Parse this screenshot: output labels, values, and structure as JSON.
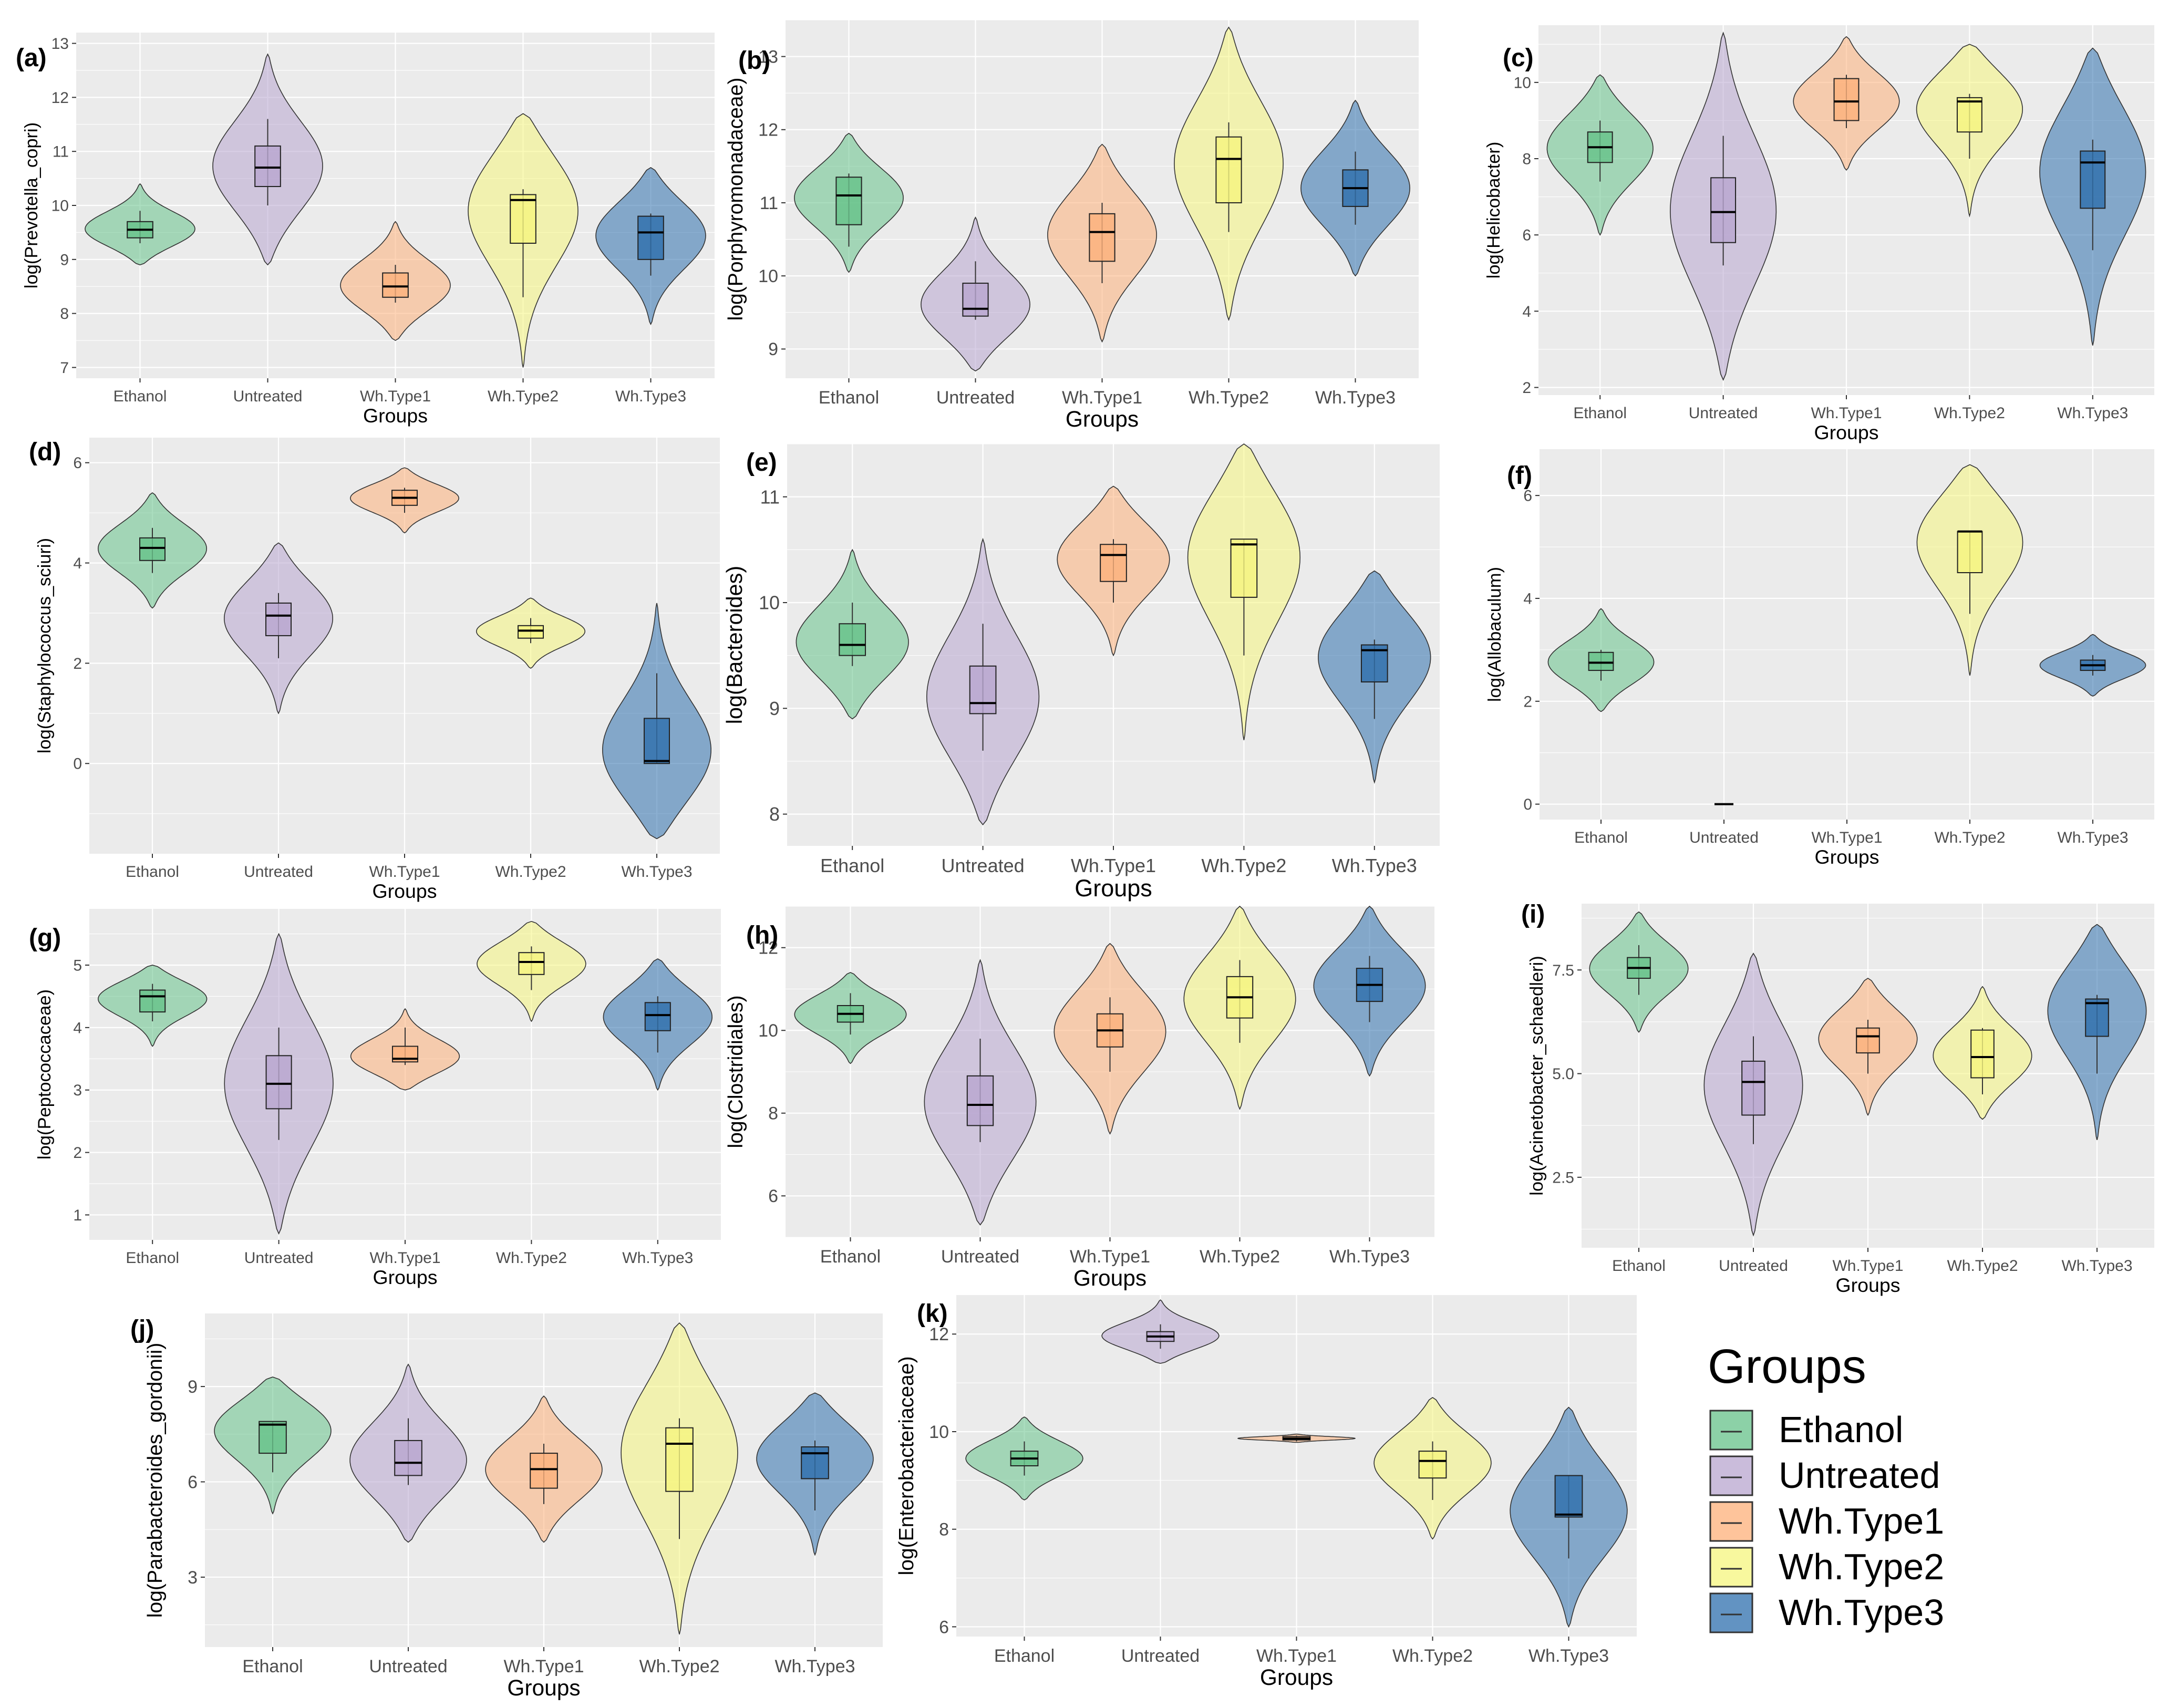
{
  "legend": {
    "title": "Groups",
    "items": [
      {
        "label": "Ethanol",
        "color": "#66C28A"
      },
      {
        "label": "Untreated",
        "color": "#B8A5CF"
      },
      {
        "label": "Wh.Type1",
        "color": "#FDB07A"
      },
      {
        "label": "Wh.Type2",
        "color": "#F6F57E"
      },
      {
        "label": "Wh.Type3",
        "color": "#2E6FAD"
      }
    ]
  },
  "chart_data": [
    {
      "id": "a",
      "label": "(a)",
      "type": "violin",
      "ylabel": "log(Prevotella_copri)",
      "xlabel": "Groups",
      "categories": [
        "Ethanol",
        "Untreated",
        "Wh.Type1",
        "Wh.Type2",
        "Wh.Type3"
      ],
      "ylim": [
        6.8,
        13.2
      ],
      "yticks": [
        "7",
        "8",
        "9",
        "10",
        "11",
        "12",
        "13"
      ],
      "series": [
        {
          "name": "Ethanol",
          "min": 8.9,
          "max": 10.4,
          "q1": 9.4,
          "median": 9.55,
          "q3": 9.7,
          "wlo": 9.3,
          "whi": 9.9
        },
        {
          "name": "Untreated",
          "min": 8.9,
          "max": 12.8,
          "q1": 10.35,
          "median": 10.7,
          "q3": 11.1,
          "wlo": 10.0,
          "whi": 11.6
        },
        {
          "name": "Wh.Type1",
          "min": 7.5,
          "max": 9.7,
          "q1": 8.3,
          "median": 8.5,
          "q3": 8.75,
          "wlo": 8.2,
          "whi": 8.9
        },
        {
          "name": "Wh.Type2",
          "min": 7.0,
          "max": 11.7,
          "q1": 9.3,
          "median": 10.1,
          "q3": 10.2,
          "wlo": 8.3,
          "whi": 10.3
        },
        {
          "name": "Wh.Type3",
          "min": 7.8,
          "max": 10.7,
          "q1": 9.0,
          "median": 9.5,
          "q3": 9.8,
          "wlo": 8.7,
          "whi": 9.85
        }
      ]
    },
    {
      "id": "b",
      "label": "(b)",
      "type": "violin",
      "ylabel": "log(Porphyromonadaceae)",
      "xlabel": "Groups",
      "categories": [
        "Ethanol",
        "Untreated",
        "Wh.Type1",
        "Wh.Type2",
        "Wh.Type3"
      ],
      "ylim": [
        8.6,
        13.5
      ],
      "yticks": [
        "9",
        "10",
        "11",
        "12",
        "13"
      ],
      "series": [
        {
          "name": "Ethanol",
          "min": 10.05,
          "max": 11.95,
          "q1": 10.7,
          "median": 11.1,
          "q3": 11.35,
          "wlo": 10.4,
          "whi": 11.4
        },
        {
          "name": "Untreated",
          "min": 8.7,
          "max": 10.8,
          "q1": 9.45,
          "median": 9.55,
          "q3": 9.9,
          "wlo": 9.4,
          "whi": 10.2
        },
        {
          "name": "Wh.Type1",
          "min": 9.1,
          "max": 11.8,
          "q1": 10.2,
          "median": 10.6,
          "q3": 10.85,
          "wlo": 9.9,
          "whi": 11.0
        },
        {
          "name": "Wh.Type2",
          "min": 9.4,
          "max": 13.4,
          "q1": 11.0,
          "median": 11.6,
          "q3": 11.9,
          "wlo": 10.6,
          "whi": 12.1
        },
        {
          "name": "Wh.Type3",
          "min": 10.0,
          "max": 12.4,
          "q1": 10.95,
          "median": 11.2,
          "q3": 11.45,
          "wlo": 10.7,
          "whi": 11.7
        }
      ]
    },
    {
      "id": "c",
      "label": "(c)",
      "type": "violin",
      "ylabel": "log(Helicobacter)",
      "xlabel": "Groups",
      "categories": [
        "Ethanol",
        "Untreated",
        "Wh.Type1",
        "Wh.Type2",
        "Wh.Type3"
      ],
      "ylim": [
        1.8,
        11.5
      ],
      "yticks": [
        "2",
        "4",
        "6",
        "8",
        "10"
      ],
      "series": [
        {
          "name": "Ethanol",
          "min": 6.0,
          "max": 10.2,
          "q1": 7.9,
          "median": 8.3,
          "q3": 8.7,
          "wlo": 7.4,
          "whi": 9.0
        },
        {
          "name": "Untreated",
          "min": 2.2,
          "max": 11.3,
          "q1": 5.8,
          "median": 6.6,
          "q3": 7.5,
          "wlo": 5.2,
          "whi": 8.6
        },
        {
          "name": "Wh.Type1",
          "min": 7.7,
          "max": 11.2,
          "q1": 9.0,
          "median": 9.5,
          "q3": 10.1,
          "wlo": 8.8,
          "whi": 10.2
        },
        {
          "name": "Wh.Type2",
          "min": 6.5,
          "max": 11.0,
          "q1": 8.7,
          "median": 9.5,
          "q3": 9.6,
          "wlo": 8.0,
          "whi": 9.7
        },
        {
          "name": "Wh.Type3",
          "min": 3.1,
          "max": 10.9,
          "q1": 6.7,
          "median": 7.9,
          "q3": 8.2,
          "wlo": 5.6,
          "whi": 8.5
        }
      ]
    },
    {
      "id": "d",
      "label": "(d)",
      "type": "violin",
      "ylabel": "log(Staphylococcus_sciuri)",
      "xlabel": "Groups",
      "categories": [
        "Ethanol",
        "Untreated",
        "Wh.Type1",
        "Wh.Type2",
        "Wh.Type3"
      ],
      "ylim": [
        -1.8,
        6.5
      ],
      "yticks": [
        "0",
        "2",
        "4",
        "6"
      ],
      "series": [
        {
          "name": "Ethanol",
          "min": 3.1,
          "max": 5.4,
          "q1": 4.05,
          "median": 4.3,
          "q3": 4.5,
          "wlo": 3.8,
          "whi": 4.7
        },
        {
          "name": "Untreated",
          "min": 1.0,
          "max": 4.4,
          "q1": 2.55,
          "median": 2.95,
          "q3": 3.2,
          "wlo": 2.1,
          "whi": 3.4
        },
        {
          "name": "Wh.Type1",
          "min": 4.6,
          "max": 5.9,
          "q1": 5.15,
          "median": 5.3,
          "q3": 5.45,
          "wlo": 5.0,
          "whi": 5.5
        },
        {
          "name": "Wh.Type2",
          "min": 1.9,
          "max": 3.3,
          "q1": 2.5,
          "median": 2.65,
          "q3": 2.75,
          "wlo": 2.4,
          "whi": 2.9
        },
        {
          "name": "Wh.Type3",
          "min": -1.5,
          "max": 3.2,
          "q1": 0.0,
          "median": 0.05,
          "q3": 0.9,
          "wlo": 0.0,
          "whi": 1.8
        }
      ]
    },
    {
      "id": "e",
      "label": "(e)",
      "type": "violin",
      "ylabel": "log(Bacteroides)",
      "xlabel": "Groups",
      "categories": [
        "Ethanol",
        "Untreated",
        "Wh.Type1",
        "Wh.Type2",
        "Wh.Type3"
      ],
      "ylim": [
        7.7,
        11.5
      ],
      "yticks": [
        "8",
        "9",
        "10",
        "11"
      ],
      "series": [
        {
          "name": "Ethanol",
          "min": 8.9,
          "max": 10.5,
          "q1": 9.5,
          "median": 9.6,
          "q3": 9.8,
          "wlo": 9.4,
          "whi": 10.0
        },
        {
          "name": "Untreated",
          "min": 7.9,
          "max": 10.6,
          "q1": 8.95,
          "median": 9.05,
          "q3": 9.4,
          "wlo": 8.6,
          "whi": 9.8
        },
        {
          "name": "Wh.Type1",
          "min": 9.5,
          "max": 11.1,
          "q1": 10.2,
          "median": 10.45,
          "q3": 10.55,
          "wlo": 10.0,
          "whi": 10.6
        },
        {
          "name": "Wh.Type2",
          "min": 8.7,
          "max": 11.5,
          "q1": 10.05,
          "median": 10.55,
          "q3": 10.6,
          "wlo": 9.5,
          "whi": 10.6
        },
        {
          "name": "Wh.Type3",
          "min": 8.3,
          "max": 10.3,
          "q1": 9.25,
          "median": 9.55,
          "q3": 9.6,
          "wlo": 8.9,
          "whi": 9.65
        }
      ]
    },
    {
      "id": "f",
      "label": "(f)",
      "type": "violin",
      "ylabel": "log(Allobaculum)",
      "xlabel": "Groups",
      "categories": [
        "Ethanol",
        "Untreated",
        "Wh.Type1",
        "Wh.Type2",
        "Wh.Type3"
      ],
      "ylim": [
        -0.3,
        6.9
      ],
      "yticks": [
        "0",
        "2",
        "4",
        "6"
      ],
      "series": [
        {
          "name": "Ethanol",
          "min": 1.8,
          "max": 3.8,
          "q1": 2.6,
          "median": 2.75,
          "q3": 2.95,
          "wlo": 2.4,
          "whi": 3.0
        },
        {
          "name": "Untreated",
          "min": 0.0,
          "max": 0.0,
          "q1": 0.0,
          "median": 0.0,
          "q3": 0.0,
          "wlo": 0.0,
          "whi": 0.0
        },
        {
          "name": "Wh.Type1",
          "empty": true
        },
        {
          "name": "Wh.Type2",
          "min": 2.5,
          "max": 6.6,
          "q1": 4.5,
          "median": 5.3,
          "q3": 5.3,
          "wlo": 3.7,
          "whi": 5.3
        },
        {
          "name": "Wh.Type3",
          "min": 2.1,
          "max": 3.3,
          "q1": 2.6,
          "median": 2.7,
          "q3": 2.8,
          "wlo": 2.5,
          "whi": 2.9
        }
      ]
    },
    {
      "id": "g",
      "label": "(g)",
      "type": "violin",
      "ylabel": "log(Peptococcaceae)",
      "xlabel": "Groups",
      "categories": [
        "Ethanol",
        "Untreated",
        "Wh.Type1",
        "Wh.Type2",
        "Wh.Type3"
      ],
      "ylim": [
        0.6,
        5.9
      ],
      "yticks": [
        "1",
        "2",
        "3",
        "4",
        "5"
      ],
      "series": [
        {
          "name": "Ethanol",
          "min": 3.7,
          "max": 5.0,
          "q1": 4.25,
          "median": 4.5,
          "q3": 4.6,
          "wlo": 4.1,
          "whi": 4.7
        },
        {
          "name": "Untreated",
          "min": 0.7,
          "max": 5.5,
          "q1": 2.7,
          "median": 3.1,
          "q3": 3.55,
          "wlo": 2.2,
          "whi": 4.0
        },
        {
          "name": "Wh.Type1",
          "min": 3.0,
          "max": 4.3,
          "q1": 3.45,
          "median": 3.5,
          "q3": 3.7,
          "wlo": 3.4,
          "whi": 4.0
        },
        {
          "name": "Wh.Type2",
          "min": 4.1,
          "max": 5.7,
          "q1": 4.85,
          "median": 5.05,
          "q3": 5.2,
          "wlo": 4.6,
          "whi": 5.3
        },
        {
          "name": "Wh.Type3",
          "min": 3.0,
          "max": 5.1,
          "q1": 3.95,
          "median": 4.2,
          "q3": 4.4,
          "wlo": 3.6,
          "whi": 4.5
        }
      ]
    },
    {
      "id": "h",
      "label": "(h)",
      "type": "violin",
      "ylabel": "log(Clostridiales)",
      "xlabel": "Groups",
      "categories": [
        "Ethanol",
        "Untreated",
        "Wh.Type1",
        "Wh.Type2",
        "Wh.Type3"
      ],
      "ylim": [
        5.0,
        13.0
      ],
      "yticks": [
        "6",
        "8",
        "10",
        "12"
      ],
      "series": [
        {
          "name": "Ethanol",
          "min": 9.2,
          "max": 11.4,
          "q1": 10.2,
          "median": 10.4,
          "q3": 10.6,
          "wlo": 9.9,
          "whi": 10.9
        },
        {
          "name": "Untreated",
          "min": 5.3,
          "max": 11.7,
          "q1": 7.7,
          "median": 8.2,
          "q3": 8.9,
          "wlo": 7.3,
          "whi": 9.8
        },
        {
          "name": "Wh.Type1",
          "min": 7.5,
          "max": 12.1,
          "q1": 9.6,
          "median": 10.0,
          "q3": 10.4,
          "wlo": 9.0,
          "whi": 10.8
        },
        {
          "name": "Wh.Type2",
          "min": 8.1,
          "max": 13.0,
          "q1": 10.3,
          "median": 10.8,
          "q3": 11.3,
          "wlo": 9.7,
          "whi": 11.7
        },
        {
          "name": "Wh.Type3",
          "min": 8.9,
          "max": 13.0,
          "q1": 10.7,
          "median": 11.1,
          "q3": 11.5,
          "wlo": 10.2,
          "whi": 11.8
        }
      ]
    },
    {
      "id": "i",
      "label": "(i)",
      "type": "violin",
      "ylabel": "log(Acinetobacter_schaedleri)",
      "xlabel": "Groups",
      "categories": [
        "Ethanol",
        "Untreated",
        "Wh.Type1",
        "Wh.Type2",
        "Wh.Type3"
      ],
      "ylim": [
        0.8,
        9.1
      ],
      "yticks": [
        "2.5",
        "5.0",
        "7.5"
      ],
      "series": [
        {
          "name": "Ethanol",
          "min": 6.0,
          "max": 8.9,
          "q1": 7.3,
          "median": 7.55,
          "q3": 7.8,
          "wlo": 6.9,
          "whi": 8.1
        },
        {
          "name": "Untreated",
          "min": 1.1,
          "max": 7.9,
          "q1": 4.0,
          "median": 4.8,
          "q3": 5.3,
          "wlo": 3.3,
          "whi": 5.9
        },
        {
          "name": "Wh.Type1",
          "min": 4.0,
          "max": 7.3,
          "q1": 5.5,
          "median": 5.9,
          "q3": 6.1,
          "wlo": 5.0,
          "whi": 6.3
        },
        {
          "name": "Wh.Type2",
          "min": 3.9,
          "max": 7.1,
          "q1": 4.9,
          "median": 5.4,
          "q3": 6.05,
          "wlo": 4.5,
          "whi": 6.1
        },
        {
          "name": "Wh.Type3",
          "min": 3.4,
          "max": 8.6,
          "q1": 5.9,
          "median": 6.7,
          "q3": 6.8,
          "wlo": 5.0,
          "whi": 6.9
        }
      ]
    },
    {
      "id": "j",
      "label": "(j)",
      "type": "violin",
      "ylabel": "log(Parabacteroides_gordonii)",
      "xlabel": "Groups",
      "categories": [
        "Ethanol",
        "Untreated",
        "Wh.Type1",
        "Wh.Type2",
        "Wh.Type3"
      ],
      "ylim": [
        0.8,
        11.3
      ],
      "yticks": [
        "3",
        "6",
        "9"
      ],
      "series": [
        {
          "name": "Ethanol",
          "min": 5.0,
          "max": 9.3,
          "q1": 6.9,
          "median": 7.8,
          "q3": 7.9,
          "wlo": 6.3,
          "whi": 7.9
        },
        {
          "name": "Untreated",
          "min": 4.1,
          "max": 9.7,
          "q1": 6.2,
          "median": 6.6,
          "q3": 7.3,
          "wlo": 5.9,
          "whi": 8.0
        },
        {
          "name": "Wh.Type1",
          "min": 4.1,
          "max": 8.7,
          "q1": 5.8,
          "median": 6.4,
          "q3": 6.9,
          "wlo": 5.3,
          "whi": 7.2
        },
        {
          "name": "Wh.Type2",
          "min": 1.2,
          "max": 11.0,
          "q1": 5.7,
          "median": 7.2,
          "q3": 7.7,
          "wlo": 4.2,
          "whi": 8.0
        },
        {
          "name": "Wh.Type3",
          "min": 3.7,
          "max": 8.8,
          "q1": 6.1,
          "median": 6.9,
          "q3": 7.1,
          "wlo": 5.1,
          "whi": 7.3
        }
      ]
    },
    {
      "id": "k",
      "label": "(k)",
      "type": "violin",
      "ylabel": "log(Enterobacteriaceae)",
      "xlabel": "Groups",
      "categories": [
        "Ethanol",
        "Untreated",
        "Wh.Type1",
        "Wh.Type2",
        "Wh.Type3"
      ],
      "ylim": [
        5.8,
        12.8
      ],
      "yticks": [
        "6",
        "8",
        "10",
        "12"
      ],
      "series": [
        {
          "name": "Ethanol",
          "min": 8.6,
          "max": 10.3,
          "q1": 9.3,
          "median": 9.45,
          "q3": 9.6,
          "wlo": 9.1,
          "whi": 9.8
        },
        {
          "name": "Untreated",
          "min": 11.4,
          "max": 12.7,
          "q1": 11.85,
          "median": 11.95,
          "q3": 12.05,
          "wlo": 11.7,
          "whi": 12.2
        },
        {
          "name": "Wh.Type1",
          "min": 9.78,
          "max": 9.95,
          "q1": 9.83,
          "median": 9.86,
          "q3": 9.9,
          "wlo": 9.8,
          "whi": 9.92
        },
        {
          "name": "Wh.Type2",
          "min": 7.8,
          "max": 10.7,
          "q1": 9.05,
          "median": 9.4,
          "q3": 9.6,
          "wlo": 8.6,
          "whi": 9.8
        },
        {
          "name": "Wh.Type3",
          "min": 6.0,
          "max": 10.5,
          "q1": 8.25,
          "median": 8.3,
          "q3": 9.1,
          "wlo": 7.4,
          "whi": 9.1
        }
      ]
    }
  ]
}
